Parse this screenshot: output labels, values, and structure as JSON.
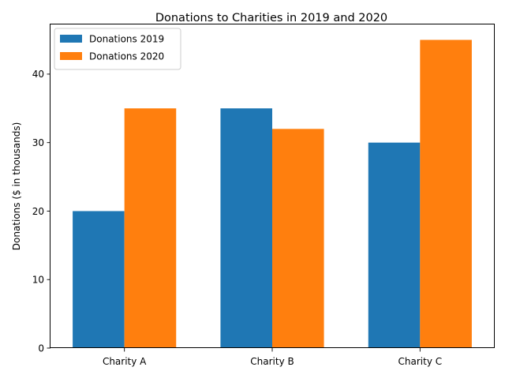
{
  "chart_data": {
    "type": "bar",
    "title": "Donations to Charities in 2019 and 2020",
    "xlabel": "",
    "ylabel": "Donations ($ in thousands)",
    "categories": [
      "Charity A",
      "Charity B",
      "Charity C"
    ],
    "series": [
      {
        "name": "Donations 2019",
        "values": [
          20,
          35,
          30
        ],
        "color": "#1f77b4"
      },
      {
        "name": "Donations 2020",
        "values": [
          35,
          32,
          45
        ],
        "color": "#ff7f0e"
      }
    ],
    "ylim": [
      0,
      47.25
    ],
    "yticks": [
      0,
      10,
      20,
      30,
      40
    ],
    "grid": false,
    "legend_position": "top-left"
  }
}
